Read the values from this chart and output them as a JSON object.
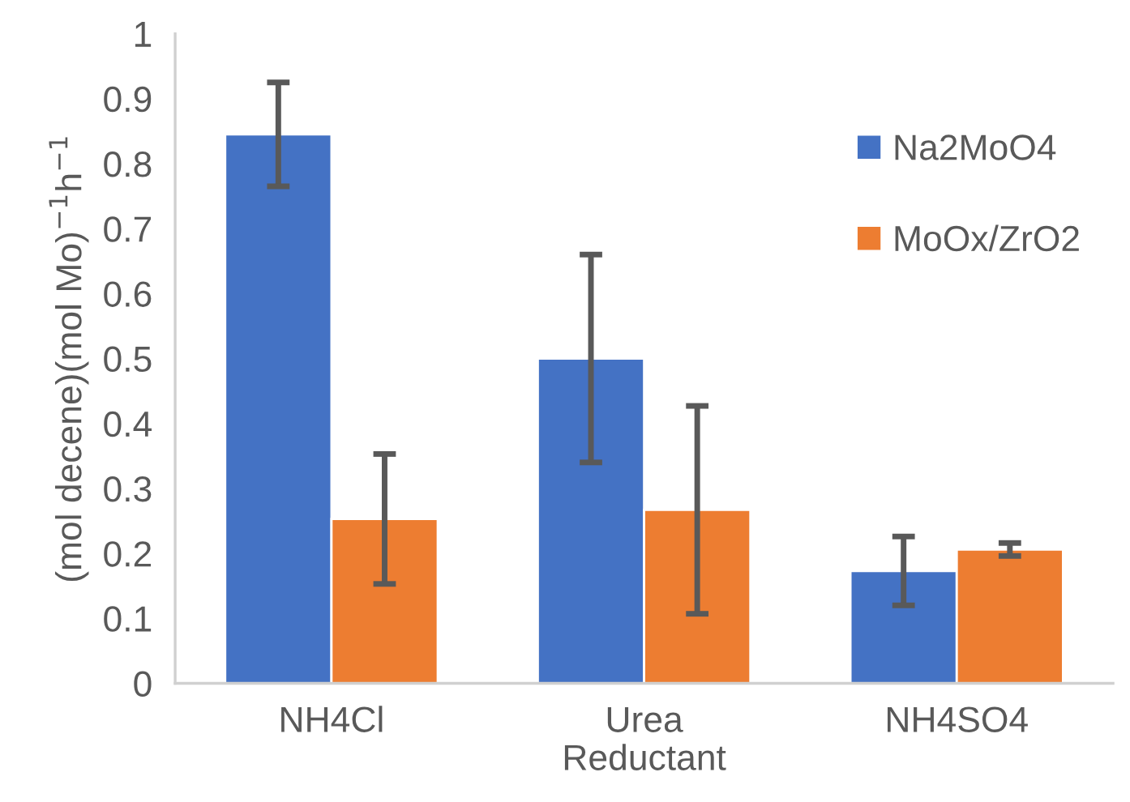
{
  "chart_data": {
    "type": "bar",
    "xlabel": "Reductant",
    "ylabel": "(mol decene)(mol Mo)$^{−1}$h$^{−1}$",
    "categories": [
      "NH4Cl",
      "Urea",
      "NH4SO4"
    ],
    "series": [
      {
        "name": "Na2MoO4",
        "color": "#4472c4",
        "values": [
          0.845,
          0.5,
          0.173
        ],
        "errors": [
          0.08,
          0.16,
          0.053
        ]
      },
      {
        "name": "MoOx/ZrO2",
        "color": "#ed7d31",
        "values": [
          0.253,
          0.267,
          0.206
        ],
        "errors": [
          0.1,
          0.16,
          0.01
        ]
      }
    ],
    "ylim": [
      0,
      1
    ],
    "yticks": [
      0,
      0.1,
      0.2,
      0.3,
      0.4,
      0.5,
      0.6,
      0.7,
      0.8,
      0.9,
      1
    ],
    "grid": false,
    "legend": "right"
  }
}
